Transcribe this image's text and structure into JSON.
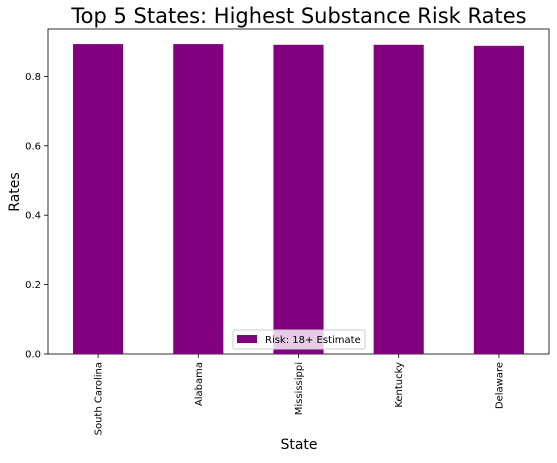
{
  "chart_data": {
    "type": "bar",
    "title": "Top 5 States: Highest Substance Risk Rates",
    "xlabel": "State",
    "ylabel": "Rates",
    "categories": [
      "South Carolina",
      "Alabama",
      "Mississippi",
      "Kentucky",
      "Delaware"
    ],
    "series": [
      {
        "name": "Risk: 18+ Estimate",
        "values": [
          0.893,
          0.893,
          0.891,
          0.891,
          0.888
        ],
        "color": "#800080"
      }
    ],
    "ylim": [
      0,
      0.9365
    ],
    "yticks": [
      0.0,
      0.2,
      0.4,
      0.6,
      0.8
    ],
    "ytick_labels": [
      "0.0",
      "0.2",
      "0.4",
      "0.6",
      "0.8"
    ],
    "grid": false,
    "legend_position": "bottom-center"
  }
}
